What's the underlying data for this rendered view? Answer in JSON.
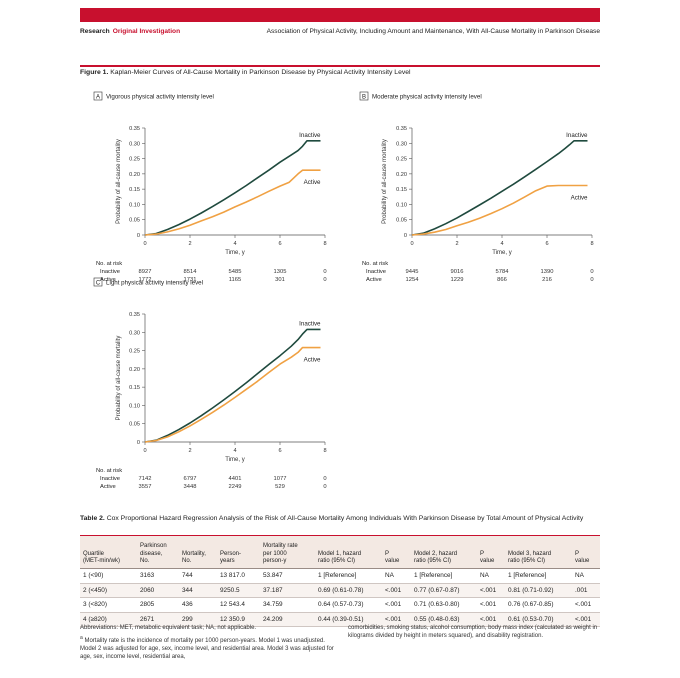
{
  "header": {
    "section": "Research",
    "subsection": "Original Investigation",
    "article_title": "Association of Physical Activity, Including Amount and Maintenance, With All-Cause Mortality in Parkinson Disease"
  },
  "figure": {
    "label": "Figure 1.",
    "title": "Kaplan-Meier Curves of All-Cause Mortality in Parkinson Disease by Physical Activity Intensity Level"
  },
  "risk_table": {
    "heading": "No. at risk"
  },
  "chart_data": [
    {
      "type": "line",
      "panel_letter": "A",
      "title": "Vigorous physical activity intensity level",
      "xlabel": "Time, y",
      "ylabel": "Probability of all-cause mortality",
      "xlim": [
        0,
        8
      ],
      "ylim": [
        0,
        0.35
      ],
      "xticks": [
        0,
        2,
        4,
        6,
        8
      ],
      "yticks": [
        "0",
        "0.05",
        "0.10",
        "0.15",
        "0.20",
        "0.25",
        "0.30",
        "0.35"
      ],
      "series": [
        {
          "name": "Inactive",
          "color": "#1f4a3e",
          "x": [
            0,
            0.5,
            1,
            1.5,
            2,
            2.5,
            3,
            3.5,
            4,
            4.5,
            5,
            5.5,
            6,
            6.5,
            6.8,
            7.0,
            7.2,
            7.8
          ],
          "y": [
            0,
            0.005,
            0.018,
            0.034,
            0.052,
            0.072,
            0.093,
            0.115,
            0.138,
            0.162,
            0.187,
            0.212,
            0.238,
            0.262,
            0.276,
            0.29,
            0.308,
            0.308
          ]
        },
        {
          "name": "Active",
          "color": "#f0a143",
          "x": [
            0,
            0.5,
            1,
            1.5,
            2,
            2.5,
            3,
            3.5,
            4,
            4.5,
            5,
            5.5,
            6,
            6.4,
            6.8,
            7.0,
            7.8
          ],
          "y": [
            0,
            0.003,
            0.01,
            0.02,
            0.032,
            0.046,
            0.06,
            0.075,
            0.092,
            0.108,
            0.125,
            0.143,
            0.16,
            0.172,
            0.2,
            0.212,
            0.212
          ]
        }
      ],
      "risk": [
        {
          "label": "Inactive",
          "values": [
            "8927",
            "8514",
            "5485",
            "1305",
            "0"
          ]
        },
        {
          "label": "Active",
          "values": [
            "1772",
            "1731",
            "1165",
            "301",
            "0"
          ]
        }
      ]
    },
    {
      "type": "line",
      "panel_letter": "B",
      "title": "Moderate physical activity intensity level",
      "xlabel": "Time, y",
      "ylabel": "Probability of all-cause mortality",
      "xlim": [
        0,
        8
      ],
      "ylim": [
        0,
        0.35
      ],
      "xticks": [
        0,
        2,
        4,
        6,
        8
      ],
      "yticks": [
        "0",
        "0.05",
        "0.10",
        "0.15",
        "0.20",
        "0.25",
        "0.30",
        "0.35"
      ],
      "series": [
        {
          "name": "Inactive",
          "color": "#1f4a3e",
          "x": [
            0,
            0.5,
            1,
            1.5,
            2,
            2.5,
            3,
            3.5,
            4,
            4.5,
            5,
            5.5,
            6,
            6.5,
            6.8,
            7.0,
            7.2,
            7.8
          ],
          "y": [
            0,
            0.006,
            0.02,
            0.037,
            0.056,
            0.077,
            0.098,
            0.12,
            0.143,
            0.166,
            0.19,
            0.215,
            0.24,
            0.266,
            0.283,
            0.295,
            0.308,
            0.308
          ]
        },
        {
          "name": "Active",
          "color": "#f0a143",
          "x": [
            0,
            0.5,
            1,
            1.5,
            2,
            2.5,
            3,
            3.5,
            4,
            4.5,
            5,
            5.5,
            6,
            6.5,
            7.0,
            7.8
          ],
          "y": [
            0,
            0.003,
            0.009,
            0.018,
            0.03,
            0.042,
            0.055,
            0.07,
            0.086,
            0.104,
            0.124,
            0.145,
            0.16,
            0.162,
            0.162,
            0.162
          ]
        }
      ],
      "risk": [
        {
          "label": "Inactive",
          "values": [
            "9445",
            "9016",
            "5784",
            "1390",
            "0"
          ]
        },
        {
          "label": "Active",
          "values": [
            "1254",
            "1229",
            "866",
            "216",
            "0"
          ]
        }
      ]
    },
    {
      "type": "line",
      "panel_letter": "C",
      "title": "Light physical activity intensity level",
      "xlabel": "Time, y",
      "ylabel": "Probability of all-cause mortality",
      "xlim": [
        0,
        8
      ],
      "ylim": [
        0,
        0.35
      ],
      "xticks": [
        0,
        2,
        4,
        6,
        8
      ],
      "yticks": [
        "0",
        "0.05",
        "0.10",
        "0.15",
        "0.20",
        "0.25",
        "0.30",
        "0.35"
      ],
      "series": [
        {
          "name": "Inactive",
          "color": "#1f4a3e",
          "x": [
            0,
            0.5,
            1,
            1.5,
            2,
            2.5,
            3,
            3.5,
            4,
            4.5,
            5,
            5.5,
            6,
            6.5,
            6.8,
            7.0,
            7.2,
            7.8
          ],
          "y": [
            0,
            0.005,
            0.018,
            0.034,
            0.052,
            0.072,
            0.093,
            0.115,
            0.138,
            0.162,
            0.187,
            0.212,
            0.236,
            0.262,
            0.28,
            0.295,
            0.308,
            0.308
          ]
        },
        {
          "name": "Active",
          "color": "#f0a143",
          "x": [
            0,
            0.5,
            1,
            1.5,
            2,
            2.5,
            3,
            3.5,
            4,
            4.5,
            5,
            5.5,
            6,
            6.5,
            6.8,
            7.0,
            7.8
          ],
          "y": [
            0,
            0.004,
            0.014,
            0.028,
            0.044,
            0.062,
            0.081,
            0.101,
            0.122,
            0.144,
            0.166,
            0.19,
            0.213,
            0.232,
            0.245,
            0.258,
            0.258
          ]
        }
      ],
      "risk": [
        {
          "label": "Inactive",
          "values": [
            "7142",
            "6797",
            "4401",
            "1077",
            "0"
          ]
        },
        {
          "label": "Active",
          "values": [
            "3557",
            "3448",
            "2249",
            "529",
            "0"
          ]
        }
      ]
    }
  ],
  "table": {
    "label": "Table 2.",
    "title": "Cox Proportional Hazard Regression Analysis of the Risk of All-Cause Mortality Among Individuals With Parkinson Disease by Total Amount of Physical Activity",
    "headers": {
      "quartile": [
        "Quartile",
        "(MET-min/wk)"
      ],
      "patients": [
        "Parkinson",
        "disease,",
        "No."
      ],
      "mortality": [
        "Mortality,",
        "No."
      ],
      "person_years": [
        "Person-",
        "years"
      ],
      "rate": [
        "Mortality rate",
        "per 1000",
        "person-y"
      ],
      "m1": [
        "Model 1, hazard",
        "ratio (95% CI)"
      ],
      "p1": [
        "P",
        "value"
      ],
      "m2": [
        "Model 2, hazard",
        "ratio (95% CI)"
      ],
      "p2": [
        "P",
        "value"
      ],
      "m3": [
        "Model 3, hazard",
        "ratio (95% CI)"
      ],
      "p3": [
        "P",
        "value"
      ]
    },
    "rows": [
      [
        "1 (<90)",
        "3163",
        "744",
        "13 817.0",
        "53.847",
        "1 [Reference]",
        "NA",
        "1 [Reference]",
        "NA",
        "1 [Reference]",
        "NA"
      ],
      [
        "2 (<450)",
        "2060",
        "344",
        "9250.5",
        "37.187",
        "0.69 (0.61-0.78)",
        "<.001",
        "0.77 (0.67-0.87)",
        "<.001",
        "0.81 (0.71-0.92)",
        ".001"
      ],
      [
        "3 (<820)",
        "2805",
        "436",
        "12 543.4",
        "34.759",
        "0.64 (0.57-0.73)",
        "<.001",
        "0.71 (0.63-0.80)",
        "<.001",
        "0.76 (0.67-0.85)",
        "<.001"
      ],
      [
        "4 (≥820)",
        "2671",
        "299",
        "12 350.9",
        "24.209",
        "0.44 (0.39-0.51)",
        "<.001",
        "0.55 (0.48-0.63)",
        "<.001",
        "0.61 (0.53-0.70)",
        "<.001"
      ]
    ],
    "abbreviations": "Abbreviations: MET, metabolic equivalent task; NA, not applicable.",
    "footnote_mark": "a",
    "footnote_left": "Mortality rate is the incidence of mortality per 1000 person-years. Model 1 was unadjusted. Model 2 was adjusted for age, sex, income level, and residential area. Model 3 was adjusted for age, sex, income level, residential area,",
    "footnote_right": "comorbidities, smoking status, alcohol consumption, body mass index (calculated as weight in kilograms divided by height in meters squared), and disability registration."
  }
}
